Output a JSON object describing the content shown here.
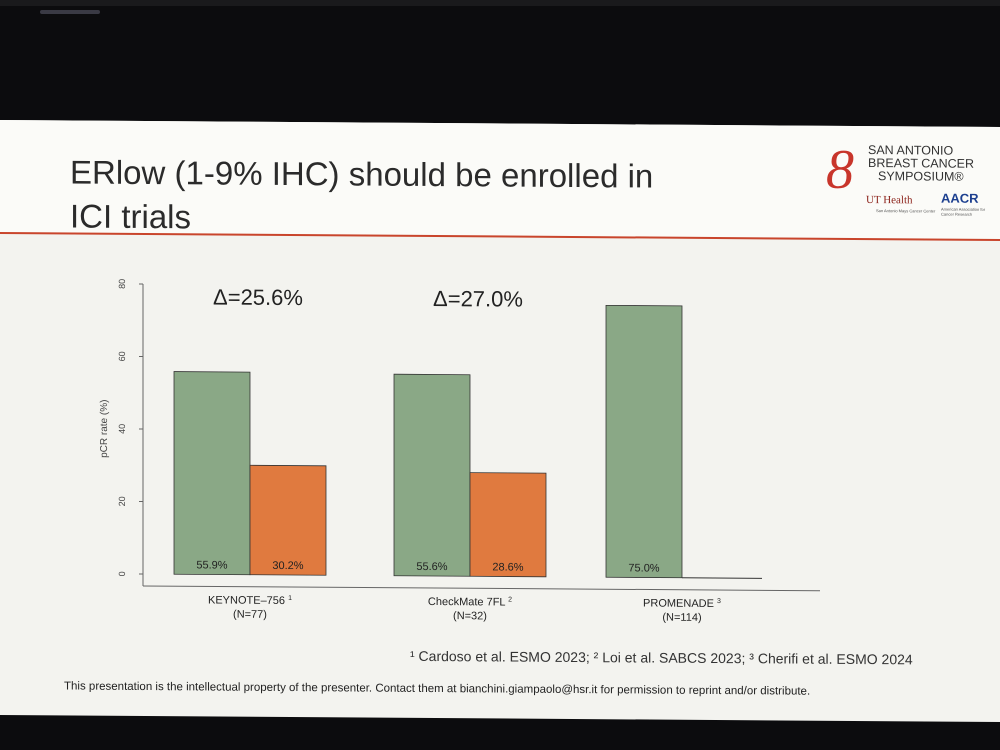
{
  "slide": {
    "title_line1": "ERlow (1-9% IHC) should be enrolled in",
    "title_line2": "ICI trials",
    "footnote": "¹ Cardoso et al. ESMO 2023; ² Loi et al. SABCS 2023; ³ Cherifi et al. ESMO 2024",
    "disclaimer": "This presentation is the intellectual property of the presenter. Contact them at bianchini.giampaolo@hsr.it for permission to reprint and/or distribute.",
    "accent_color": "#c9452c"
  },
  "logo": {
    "line1": "SAN ANTONIO",
    "line2": "BREAST CANCER",
    "line3": "SYMPOSIUM®",
    "ut_health": "UT Health",
    "ut_sub": "San Antonio Mays Cancer Center",
    "aacr": "AACR",
    "aacr_sub": "American Association for Cancer Research"
  },
  "chart_data": {
    "type": "bar",
    "ylabel": "pCR rate (%)",
    "ylim": [
      0,
      80
    ],
    "yticks": [
      0,
      20,
      40,
      60,
      80
    ],
    "colors": {
      "green": "#8aa886",
      "orange": "#e07a3f"
    },
    "groups": [
      {
        "label": "KEYNOTE–756",
        "sup": "1",
        "n": "(N=77)",
        "delta": "Δ=25.6%",
        "bars": [
          {
            "value": 55.9,
            "label": "55.9%",
            "color": "green"
          },
          {
            "value": 30.2,
            "label": "30.2%",
            "color": "orange"
          }
        ]
      },
      {
        "label": "CheckMate 7FL",
        "sup": "2",
        "n": "(N=32)",
        "delta": "Δ=27.0%",
        "bars": [
          {
            "value": 55.6,
            "label": "55.6%",
            "color": "green"
          },
          {
            "value": 28.6,
            "label": "28.6%",
            "color": "orange"
          }
        ]
      },
      {
        "label": "PROMENADE",
        "sup": "3",
        "n": "(N=114)",
        "delta": "",
        "bars": [
          {
            "value": 75.0,
            "label": "75.0%",
            "color": "green"
          }
        ]
      }
    ]
  }
}
